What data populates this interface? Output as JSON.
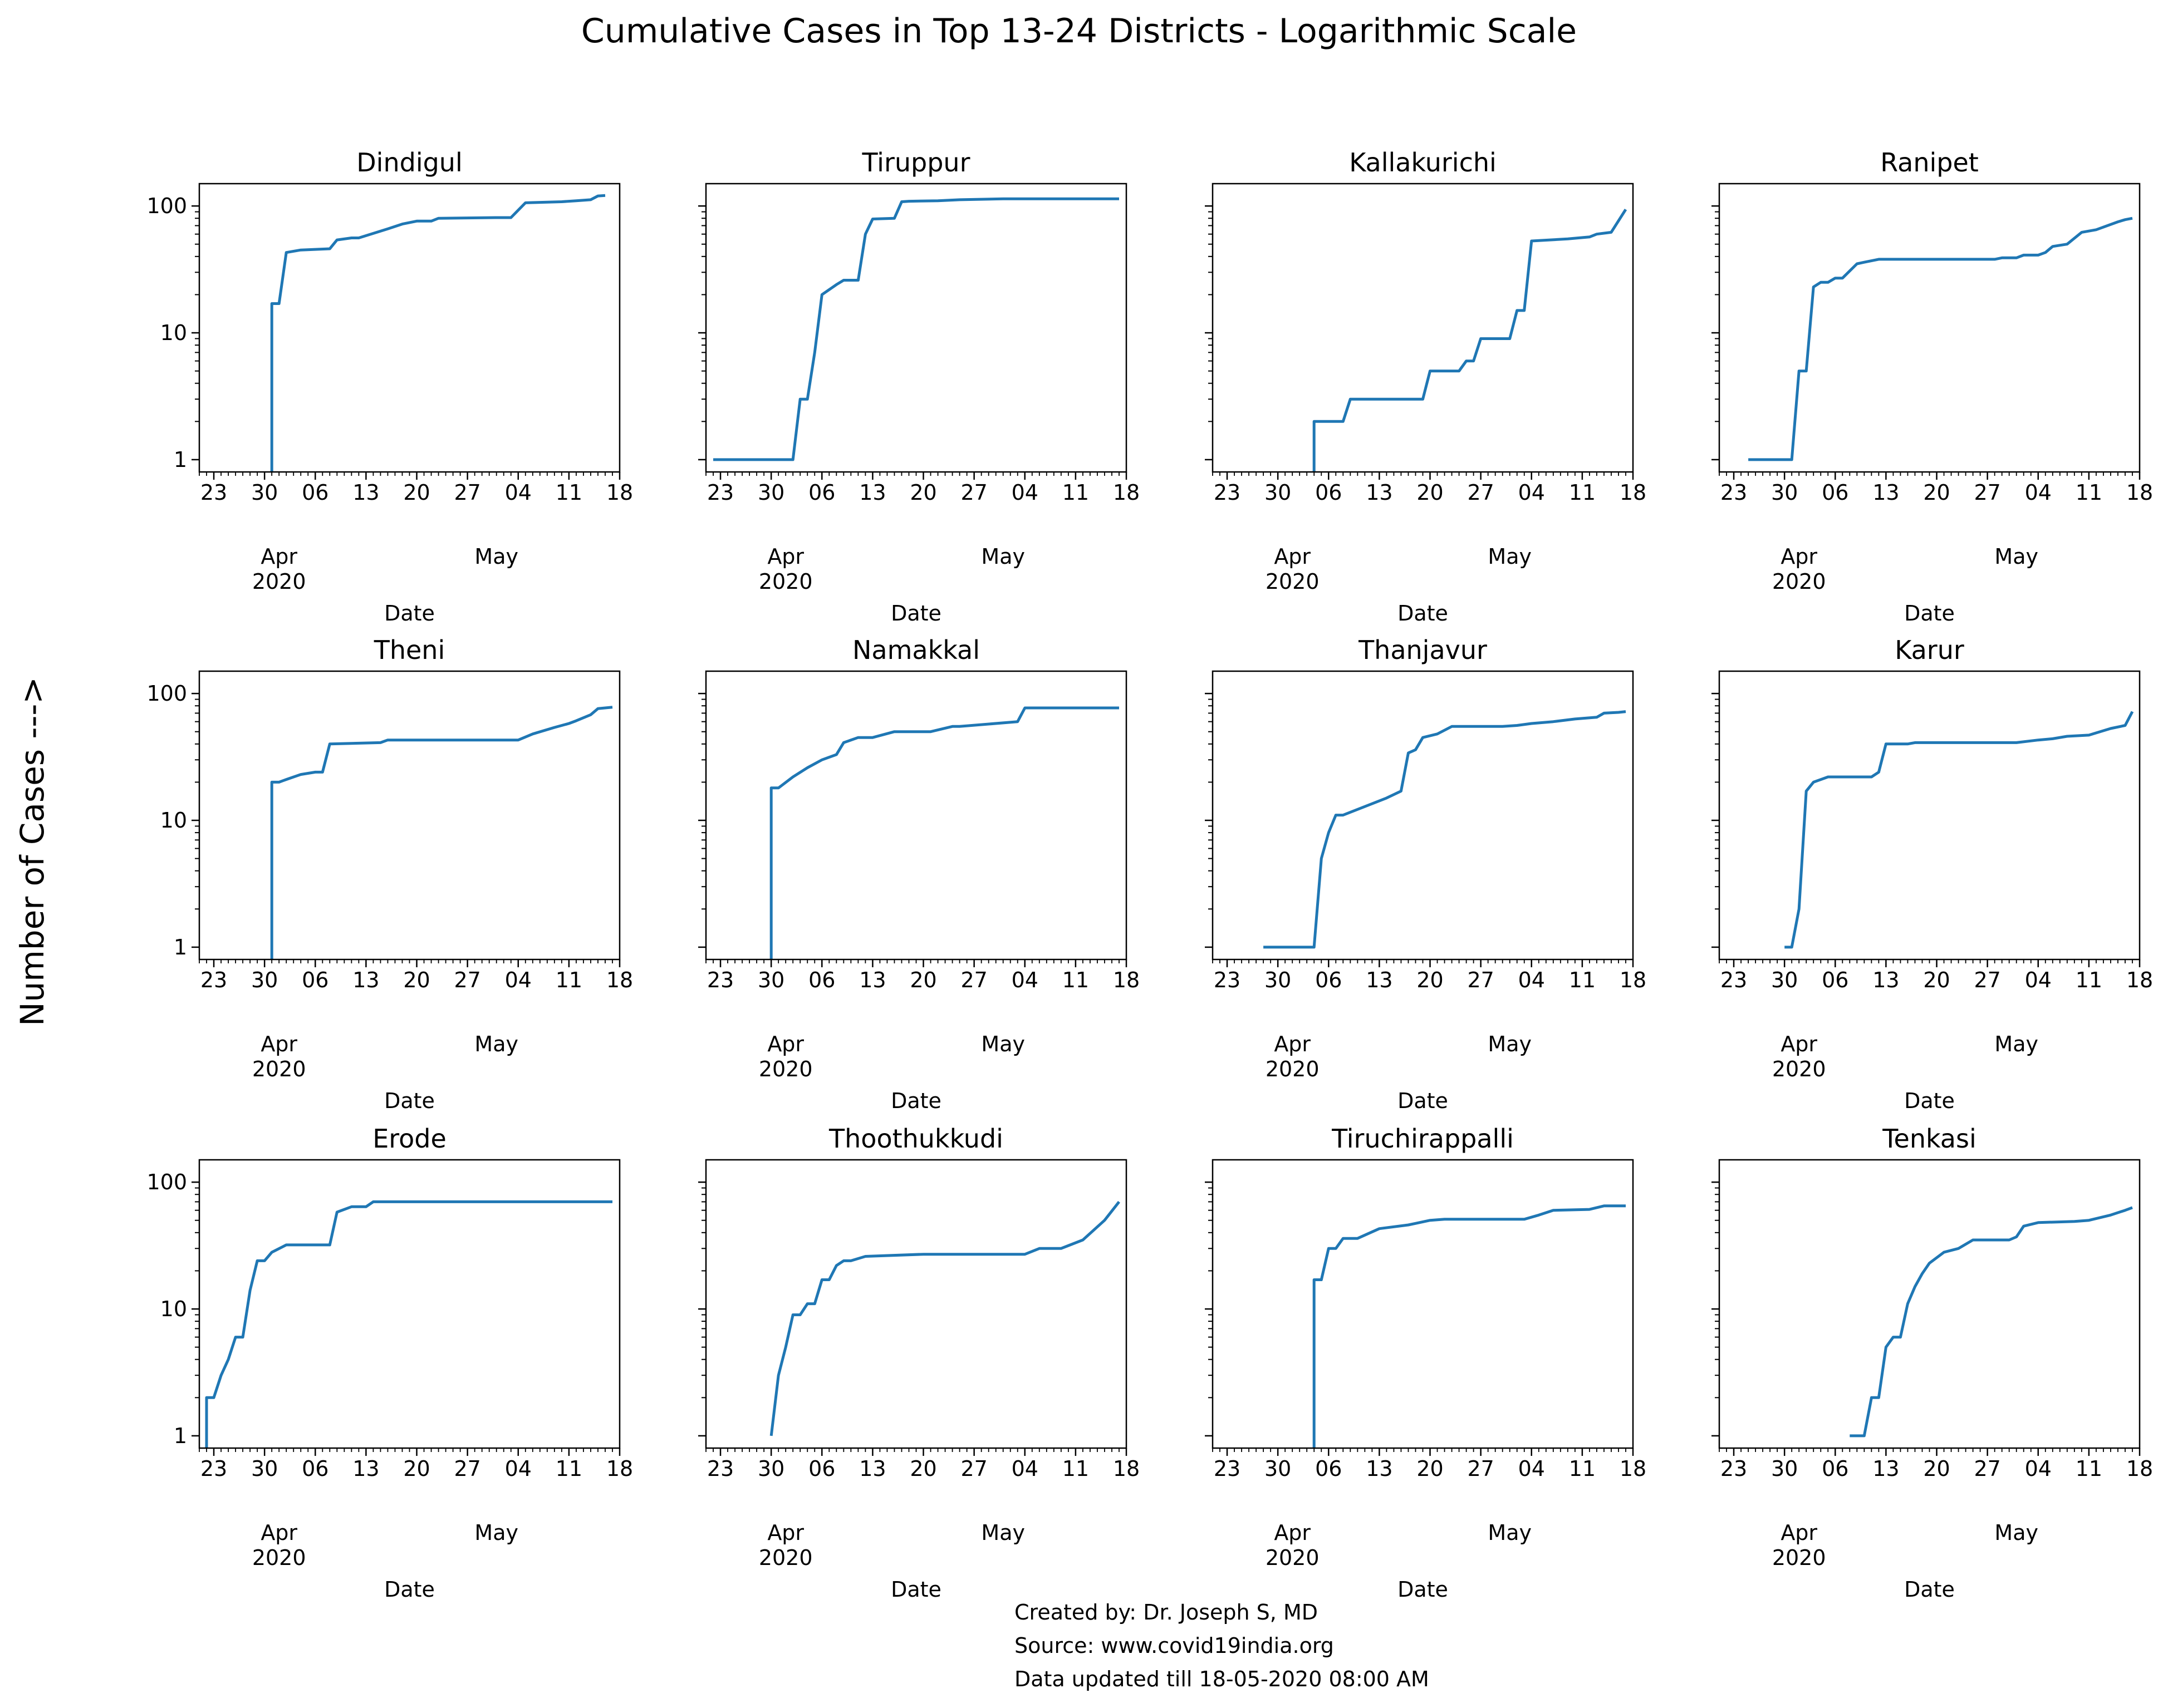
{
  "figure": {
    "title": "Cumulative Cases in Top 13-24 Districts - Logarithmic Scale",
    "ylabel": "Number of Cases --->",
    "xlabel": "Date",
    "line_color": "#1f77b4"
  },
  "footer": {
    "created_by": "Created by: Dr. Joseph S, MD",
    "source": "Source: www.covid19india.org",
    "updated": "Data updated till 18-05-2020 08:00 AM"
  },
  "chart_data": [
    {
      "type": "line",
      "title": "Dindigul",
      "yscale": "log",
      "ylim": [
        0.8,
        150
      ],
      "xlim": [
        "2020-03-21",
        "2020-05-18"
      ],
      "x": [
        "2020-03-31",
        "2020-04-01",
        "2020-04-02",
        "2020-04-04",
        "2020-04-08",
        "2020-04-09",
        "2020-04-11",
        "2020-04-12",
        "2020-04-16",
        "2020-04-18",
        "2020-04-20",
        "2020-04-22",
        "2020-04-23",
        "2020-05-01",
        "2020-05-03",
        "2020-05-05",
        "2020-05-10",
        "2020-05-12",
        "2020-05-14",
        "2020-05-15",
        "2020-05-16"
      ],
      "y": [
        17,
        17,
        43,
        45,
        46,
        54,
        56,
        56,
        66,
        72,
        76,
        76,
        80,
        81,
        81,
        106,
        108,
        110,
        112,
        120,
        121
      ]
    },
    {
      "type": "line",
      "title": "Tiruppur",
      "yscale": "log",
      "ylim": [
        0.8,
        150
      ],
      "xlim": [
        "2020-03-21",
        "2020-05-18"
      ],
      "x": [
        "2020-03-22",
        "2020-04-02",
        "2020-04-03",
        "2020-04-04",
        "2020-04-05",
        "2020-04-06",
        "2020-04-08",
        "2020-04-09",
        "2020-04-11",
        "2020-04-12",
        "2020-04-13",
        "2020-04-16",
        "2020-04-17",
        "2020-04-18",
        "2020-04-22",
        "2020-04-25",
        "2020-05-01",
        "2020-05-17"
      ],
      "y": [
        1,
        1,
        3,
        3,
        7,
        20,
        24,
        26,
        26,
        60,
        79,
        80,
        108,
        109,
        110,
        112,
        114,
        114
      ]
    },
    {
      "type": "line",
      "title": "Kallakurichi",
      "yscale": "log",
      "ylim": [
        0.8,
        150
      ],
      "xlim": [
        "2020-03-21",
        "2020-05-18"
      ],
      "x": [
        "2020-04-04",
        "2020-04-08",
        "2020-04-09",
        "2020-04-19",
        "2020-04-20",
        "2020-04-24",
        "2020-04-25",
        "2020-04-26",
        "2020-04-27",
        "2020-05-01",
        "2020-05-02",
        "2020-05-03",
        "2020-05-04",
        "2020-05-09",
        "2020-05-12",
        "2020-05-13",
        "2020-05-15",
        "2020-05-17"
      ],
      "y": [
        2,
        2,
        3,
        3,
        5,
        5,
        6,
        6,
        9,
        9,
        15,
        15,
        53,
        55,
        57,
        60,
        62,
        94
      ]
    },
    {
      "type": "line",
      "title": "Ranipet",
      "yscale": "log",
      "ylim": [
        0.8,
        150
      ],
      "xlim": [
        "2020-03-21",
        "2020-05-18"
      ],
      "x": [
        "2020-03-25",
        "2020-03-31",
        "2020-04-01",
        "2020-04-02",
        "2020-04-03",
        "2020-04-04",
        "2020-04-05",
        "2020-04-06",
        "2020-04-07",
        "2020-04-09",
        "2020-04-10",
        "2020-04-12",
        "2020-04-13",
        "2020-04-28",
        "2020-04-29",
        "2020-05-01",
        "2020-05-02",
        "2020-05-04",
        "2020-05-05",
        "2020-05-06",
        "2020-05-08",
        "2020-05-10",
        "2020-05-12",
        "2020-05-15",
        "2020-05-16",
        "2020-05-17"
      ],
      "y": [
        1,
        1,
        5,
        5,
        23,
        25,
        25,
        27,
        27,
        35,
        36,
        38,
        38,
        38,
        39,
        39,
        41,
        41,
        43,
        48,
        50,
        62,
        65,
        75,
        78,
        80
      ]
    },
    {
      "type": "line",
      "title": "Theni",
      "yscale": "log",
      "ylim": [
        0.8,
        150
      ],
      "xlim": [
        "2020-03-21",
        "2020-05-18"
      ],
      "x": [
        "2020-03-31",
        "2020-04-01",
        "2020-04-02",
        "2020-04-04",
        "2020-04-06",
        "2020-04-07",
        "2020-04-08",
        "2020-04-15",
        "2020-04-16",
        "2020-05-03",
        "2020-05-04",
        "2020-05-06",
        "2020-05-09",
        "2020-05-11",
        "2020-05-12",
        "2020-05-14",
        "2020-05-15",
        "2020-05-17"
      ],
      "y": [
        20,
        20,
        21,
        23,
        24,
        24,
        40,
        41,
        43,
        43,
        43,
        48,
        54,
        58,
        61,
        68,
        76,
        78
      ]
    },
    {
      "type": "line",
      "title": "Namakkal",
      "yscale": "log",
      "ylim": [
        0.8,
        150
      ],
      "xlim": [
        "2020-03-21",
        "2020-05-18"
      ],
      "x": [
        "2020-03-30",
        "2020-03-31",
        "2020-04-02",
        "2020-04-04",
        "2020-04-06",
        "2020-04-08",
        "2020-04-09",
        "2020-04-11",
        "2020-04-13",
        "2020-04-16",
        "2020-04-21",
        "2020-04-24",
        "2020-04-25",
        "2020-05-03",
        "2020-05-04",
        "2020-05-07",
        "2020-05-17"
      ],
      "y": [
        18,
        18,
        22,
        26,
        30,
        33,
        41,
        45,
        45,
        50,
        50,
        55,
        55,
        60,
        77,
        77,
        77
      ]
    },
    {
      "type": "line",
      "title": "Thanjavur",
      "yscale": "log",
      "ylim": [
        0.8,
        150
      ],
      "xlim": [
        "2020-03-21",
        "2020-05-18"
      ],
      "x": [
        "2020-03-28",
        "2020-04-04",
        "2020-04-05",
        "2020-04-06",
        "2020-04-07",
        "2020-04-08",
        "2020-04-14",
        "2020-04-16",
        "2020-04-17",
        "2020-04-18",
        "2020-04-19",
        "2020-04-21",
        "2020-04-23",
        "2020-04-30",
        "2020-05-02",
        "2020-05-04",
        "2020-05-07",
        "2020-05-10",
        "2020-05-13",
        "2020-05-14",
        "2020-05-16",
        "2020-05-17"
      ],
      "y": [
        1,
        1,
        5,
        8,
        11,
        11,
        15,
        17,
        34,
        36,
        45,
        48,
        55,
        55,
        56,
        58,
        60,
        63,
        65,
        70,
        71,
        72
      ]
    },
    {
      "type": "line",
      "title": "Karur",
      "yscale": "log",
      "ylim": [
        0.8,
        150
      ],
      "xlim": [
        "2020-03-21",
        "2020-05-18"
      ],
      "x": [
        "2020-03-30",
        "2020-03-31",
        "2020-04-01",
        "2020-04-02",
        "2020-04-03",
        "2020-04-05",
        "2020-04-11",
        "2020-04-12",
        "2020-04-13",
        "2020-04-16",
        "2020-04-17",
        "2020-05-01",
        "2020-05-04",
        "2020-05-06",
        "2020-05-08",
        "2020-05-11",
        "2020-05-14",
        "2020-05-16",
        "2020-05-17"
      ],
      "y": [
        1,
        1,
        2,
        17,
        20,
        22,
        22,
        24,
        40,
        40,
        41,
        41,
        43,
        44,
        46,
        47,
        53,
        56,
        72
      ]
    },
    {
      "type": "line",
      "title": "Erode",
      "yscale": "log",
      "ylim": [
        0.8,
        150
      ],
      "xlim": [
        "2020-03-21",
        "2020-05-18"
      ],
      "x": [
        "2020-03-22",
        "2020-03-23",
        "2020-03-24",
        "2020-03-25",
        "2020-03-26",
        "2020-03-27",
        "2020-03-28",
        "2020-03-29",
        "2020-03-30",
        "2020-03-31",
        "2020-04-02",
        "2020-04-08",
        "2020-04-09",
        "2020-04-11",
        "2020-04-13",
        "2020-04-14",
        "2020-05-17"
      ],
      "y": [
        2,
        2,
        3,
        4,
        6,
        6,
        14,
        24,
        24,
        28,
        32,
        32,
        58,
        64,
        64,
        70,
        70
      ]
    },
    {
      "type": "line",
      "title": "Thoothukkudi",
      "yscale": "log",
      "ylim": [
        0.8,
        150
      ],
      "xlim": [
        "2020-03-21",
        "2020-05-18"
      ],
      "x": [
        "2020-03-30",
        "2020-03-31",
        "2020-04-01",
        "2020-04-02",
        "2020-04-03",
        "2020-04-04",
        "2020-04-05",
        "2020-04-06",
        "2020-04-07",
        "2020-04-08",
        "2020-04-09",
        "2020-04-10",
        "2020-04-12",
        "2020-04-20",
        "2020-05-04",
        "2020-05-06",
        "2020-05-09",
        "2020-05-12",
        "2020-05-15",
        "2020-05-17"
      ],
      "y": [
        1,
        3,
        5,
        9,
        9,
        11,
        11,
        17,
        17,
        22,
        24,
        24,
        26,
        27,
        27,
        30,
        30,
        35,
        50,
        70
      ]
    },
    {
      "type": "line",
      "title": "Tiruchirappalli",
      "yscale": "log",
      "ylim": [
        0.8,
        150
      ],
      "xlim": [
        "2020-03-21",
        "2020-05-18"
      ],
      "x": [
        "2020-04-04",
        "2020-04-05",
        "2020-04-06",
        "2020-04-07",
        "2020-04-08",
        "2020-04-10",
        "2020-04-13",
        "2020-04-17",
        "2020-04-20",
        "2020-04-22",
        "2020-05-03",
        "2020-05-05",
        "2020-05-07",
        "2020-05-12",
        "2020-05-14",
        "2020-05-17"
      ],
      "y": [
        17,
        17,
        30,
        30,
        36,
        36,
        43,
        46,
        50,
        51,
        51,
        55,
        60,
        61,
        65,
        65
      ]
    },
    {
      "type": "line",
      "title": "Tenkasi",
      "yscale": "log",
      "ylim": [
        0.8,
        150
      ],
      "xlim": [
        "2020-03-21",
        "2020-05-18"
      ],
      "x": [
        "2020-04-08",
        "2020-04-10",
        "2020-04-11",
        "2020-04-12",
        "2020-04-13",
        "2020-04-14",
        "2020-04-15",
        "2020-04-16",
        "2020-04-17",
        "2020-04-18",
        "2020-04-19",
        "2020-04-21",
        "2020-04-23",
        "2020-04-25",
        "2020-04-30",
        "2020-05-01",
        "2020-05-02",
        "2020-05-04",
        "2020-05-09",
        "2020-05-11",
        "2020-05-14",
        "2020-05-16",
        "2020-05-17"
      ],
      "y": [
        1,
        1,
        2,
        2,
        5,
        6,
        6,
        11,
        15,
        19,
        23,
        28,
        30,
        35,
        35,
        37,
        45,
        48,
        49,
        50,
        55,
        60,
        63
      ]
    }
  ]
}
